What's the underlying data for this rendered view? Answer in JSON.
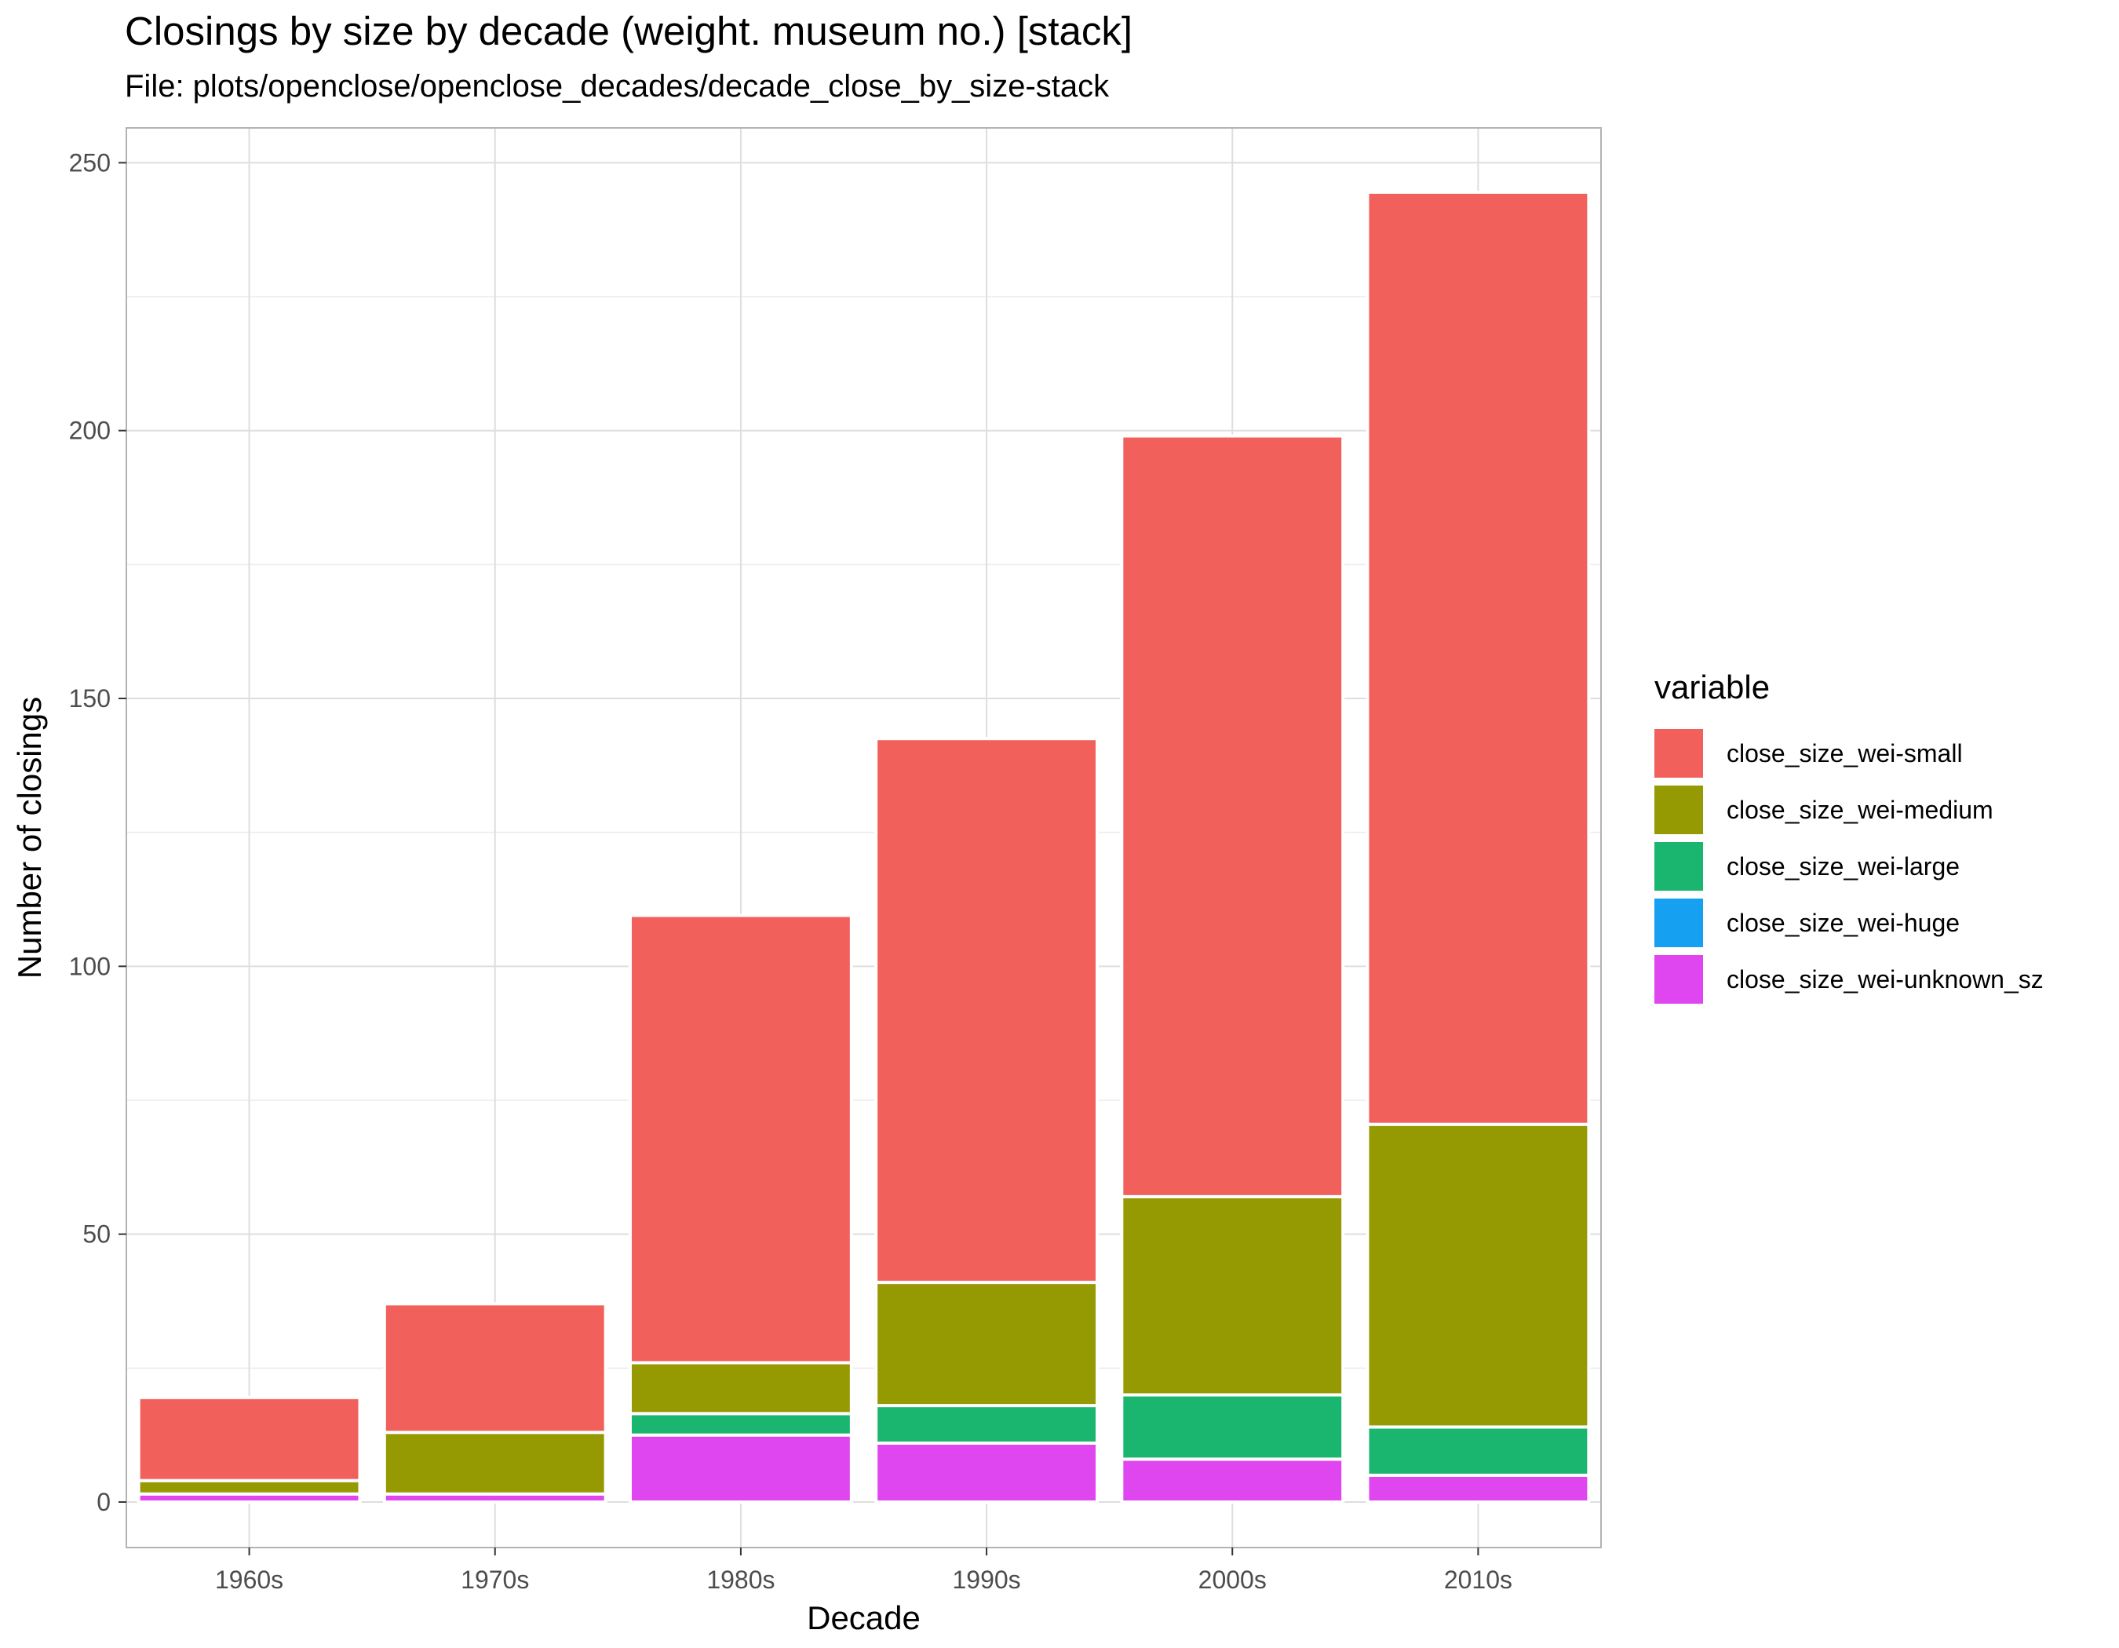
{
  "chart_data": {
    "type": "bar",
    "stacked": true,
    "title": "Closings by size by decade (weight. museum no.) [stack]",
    "subtitle": "File: plots/openclose/openclose_decades/decade_close_by_size-stack",
    "xlabel": "Decade",
    "ylabel": "Number of closings",
    "ylim": [
      -8.5,
      256.5
    ],
    "yticks": [
      0,
      50,
      100,
      150,
      200,
      250
    ],
    "grid": true,
    "legend_position": "right",
    "legend_title": "variable",
    "categories": [
      "1960s",
      "1970s",
      "1980s",
      "1990s",
      "2000s",
      "2010s"
    ],
    "series": [
      {
        "name": "close_size_wei-unknown_sz",
        "color": "#E046EF",
        "values": [
          1.5,
          1.5,
          12.5,
          11,
          8,
          5
        ]
      },
      {
        "name": "close_size_wei-huge",
        "color": "#15A0F2",
        "values": [
          0,
          0,
          0,
          0,
          0,
          0
        ]
      },
      {
        "name": "close_size_wei-large",
        "color": "#1AB56E",
        "values": [
          0,
          0,
          4,
          7,
          12,
          9
        ]
      },
      {
        "name": "close_size_wei-medium",
        "color": "#959A02",
        "values": [
          2.5,
          11.5,
          9.5,
          23,
          37,
          56.5
        ]
      },
      {
        "name": "close_size_wei-small",
        "color": "#F2605C",
        "values": [
          15.5,
          24,
          83.5,
          101.5,
          142,
          174
        ]
      }
    ],
    "legend_order": [
      "close_size_wei-small",
      "close_size_wei-medium",
      "close_size_wei-large",
      "close_size_wei-huge",
      "close_size_wei-unknown_sz"
    ]
  }
}
